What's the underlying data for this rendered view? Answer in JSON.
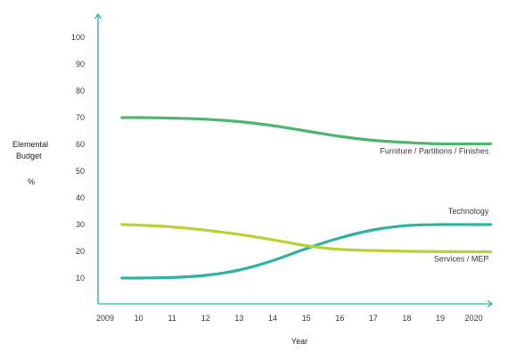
{
  "chart_data": {
    "type": "line",
    "xlabel": "Year",
    "ylabel_lines": [
      "Elemental",
      "Budget",
      "%"
    ],
    "x_ticks": [
      2009,
      2010,
      2011,
      2012,
      2013,
      2014,
      2015,
      2016,
      2017,
      2018,
      2019,
      2020
    ],
    "x_tick_labels": [
      "2009",
      "10",
      "11",
      "12",
      "13",
      "14",
      "15",
      "16",
      "17",
      "18",
      "19",
      "2020"
    ],
    "y_ticks": [
      10,
      20,
      30,
      40,
      50,
      60,
      70,
      80,
      90,
      100
    ],
    "y_tick_labels": [
      "10",
      "20",
      "30",
      "40",
      "50",
      "60",
      "70",
      "80",
      "90",
      "100"
    ],
    "xlim": [
      2009,
      2020
    ],
    "ylim": [
      0,
      100
    ],
    "grid": false,
    "series": [
      {
        "name": "Furniture / Partitions / Finishes",
        "color": "#4cb66e",
        "x": [
          2009.5,
          2010,
          2011,
          2012,
          2013,
          2014,
          2015,
          2016,
          2017,
          2018,
          2019,
          2020.5
        ],
        "values": [
          70,
          70,
          69.8,
          69.4,
          68.5,
          67,
          65,
          63,
          61.5,
          60.7,
          60.2,
          60.2
        ]
      },
      {
        "name": "Technology",
        "color": "#2eb3a0",
        "x": [
          2009.5,
          2010,
          2011,
          2012,
          2013,
          2014,
          2015,
          2016,
          2017,
          2018,
          2019,
          2020.5
        ],
        "values": [
          10,
          10,
          10.2,
          11,
          13,
          16.5,
          21,
          25,
          28,
          29.6,
          30,
          30
        ]
      },
      {
        "name": "Services / MEP",
        "color": "#b5d334",
        "x": [
          2009.5,
          2010,
          2011,
          2012,
          2013,
          2014,
          2015,
          2016,
          2017,
          2018,
          2019,
          2020.5
        ],
        "values": [
          30,
          29.8,
          29.1,
          27.9,
          26.3,
          24.3,
          22.1,
          20.7,
          20.3,
          20,
          19.9,
          19.8
        ]
      }
    ],
    "label_positions": "right"
  },
  "colors": {
    "axis": "#2eb3a0"
  }
}
